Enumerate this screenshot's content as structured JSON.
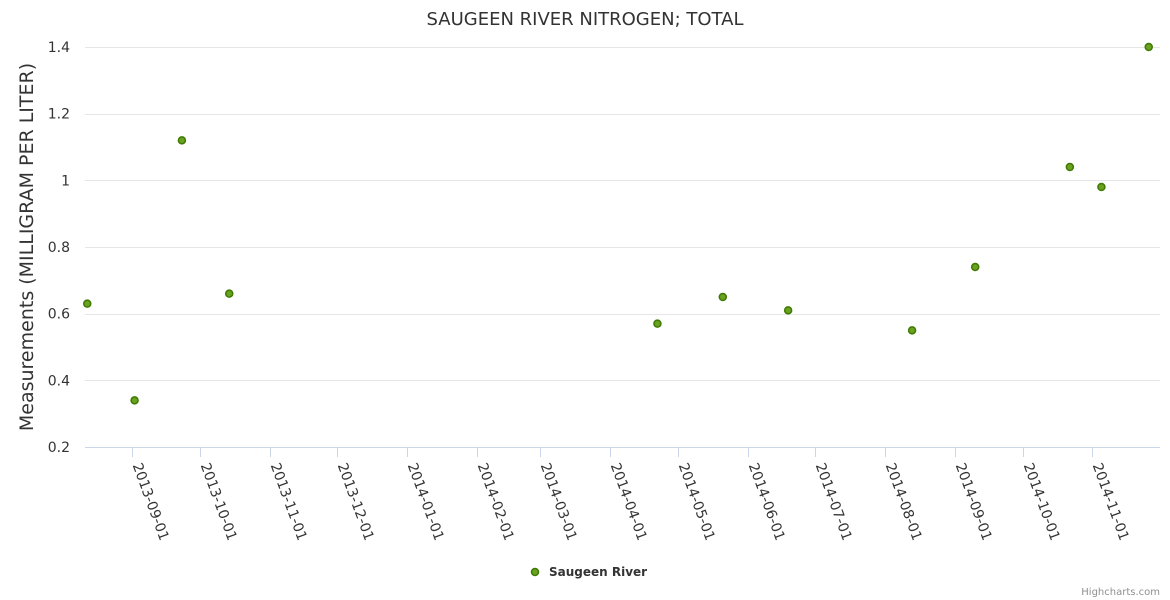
{
  "chart_data": {
    "type": "scatter",
    "title": "SAUGEEN RIVER NITROGEN; TOTAL",
    "xlabel": "",
    "ylabel": "Measurements (MILLIGRAM PER LITER)",
    "x_axis_type": "date",
    "xlim": [
      "2013-08-11",
      "2014-12-01"
    ],
    "ylim": [
      0.2,
      1.4
    ],
    "y_ticks": [
      0.2,
      0.4,
      0.6,
      0.8,
      1,
      1.2,
      1.4
    ],
    "x_ticks": [
      "2013-09-01",
      "2013-10-01",
      "2013-11-01",
      "2013-12-01",
      "2014-01-01",
      "2014-02-01",
      "2014-03-01",
      "2014-04-01",
      "2014-05-01",
      "2014-06-01",
      "2014-07-01",
      "2014-08-01",
      "2014-09-01",
      "2014-10-01",
      "2014-11-01"
    ],
    "grid": true,
    "legend": "bottom-center",
    "marker_color": "#6aa121",
    "marker_edge_color": "#3d7a00",
    "series": [
      {
        "name": "Saugeen River",
        "points": [
          {
            "x": "2013-08-12",
            "y": 0.63
          },
          {
            "x": "2013-09-02",
            "y": 0.34
          },
          {
            "x": "2013-09-23",
            "y": 1.12
          },
          {
            "x": "2013-10-14",
            "y": 0.66
          },
          {
            "x": "2014-04-22",
            "y": 0.57
          },
          {
            "x": "2014-05-21",
            "y": 0.65
          },
          {
            "x": "2014-06-19",
            "y": 0.61
          },
          {
            "x": "2014-08-13",
            "y": 0.55
          },
          {
            "x": "2014-09-10",
            "y": 0.74
          },
          {
            "x": "2014-10-22",
            "y": 1.04
          },
          {
            "x": "2014-11-05",
            "y": 0.98
          },
          {
            "x": "2014-11-26",
            "y": 1.4
          }
        ]
      }
    ]
  },
  "credits": "Highcharts.com"
}
